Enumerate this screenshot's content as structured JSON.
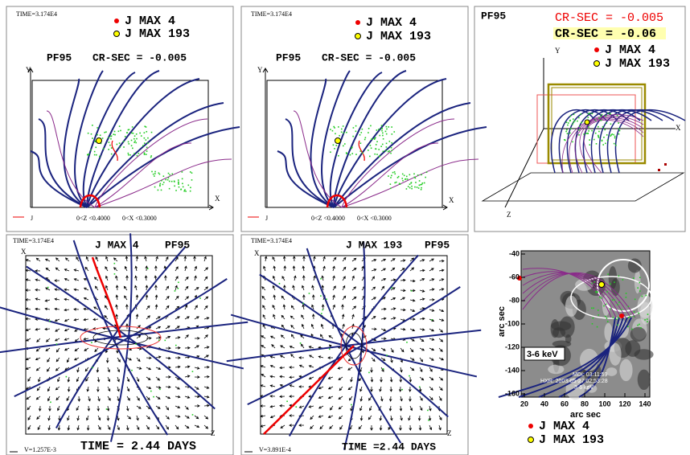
{
  "panels": [
    {
      "time": "TIME=3.174E4",
      "legend": [
        "J MAX 4",
        "J MAX 193"
      ],
      "label": "PF95",
      "cr_sec": "CR-SEC = -0.005",
      "axis_y": "Y",
      "axis_x": "X",
      "footer_j": "J",
      "range_z": "0<Z <0.4000",
      "range_x": "0<X <0.3000"
    },
    {
      "time": "TIME=3.174E4",
      "legend": [
        "J MAX 4",
        "J MAX 193"
      ],
      "label": "PF95",
      "cr_sec": "CR-SEC = -0.005",
      "axis_y": "Y",
      "axis_x": "X",
      "footer_j": "J",
      "range_z": "0<Z <0.4000",
      "range_x": "0<X <0.3000"
    },
    {
      "label": "PF95",
      "cr_sec": [
        "CR-SEC = -0.005",
        "CR-SEC = -0.06"
      ],
      "legend": [
        "J MAX 4",
        "J MAX 193"
      ],
      "axis_y": "Y",
      "axis_x": "X",
      "axis_z": "Z"
    },
    {
      "time": "TIME=3.174E4",
      "title": "J MAX 4",
      "label": "PF95",
      "axis_x": "X",
      "axis_z": "Z",
      "footer": "TIME = 2.44 DAYS",
      "scale": "V=1.257E-3"
    },
    {
      "time": "TIME=3.174E4",
      "title": "J MAX 193",
      "label": "PF95",
      "axis_x": "X",
      "axis_z": "Z",
      "footer": "TIME =2.44 DAYS",
      "scale": "V=3.891E-4"
    },
    {
      "y_ticks": [
        "-40",
        "-60",
        "-80",
        "-100",
        "-120",
        "-140",
        "-160"
      ],
      "x_ticks": [
        "20",
        "40",
        "60",
        "80",
        "100",
        "120",
        "140"
      ],
      "y_label": "arc sec",
      "x_label": "arc sec",
      "band": "3-6 keV",
      "mdi": "MDI: 03:11:59",
      "hxr": "HXR: 2003-05-27   02:53:28",
      "band_small": "3-6 keV",
      "legend": [
        "J MAX 4",
        "J MAX 193"
      ]
    }
  ]
}
